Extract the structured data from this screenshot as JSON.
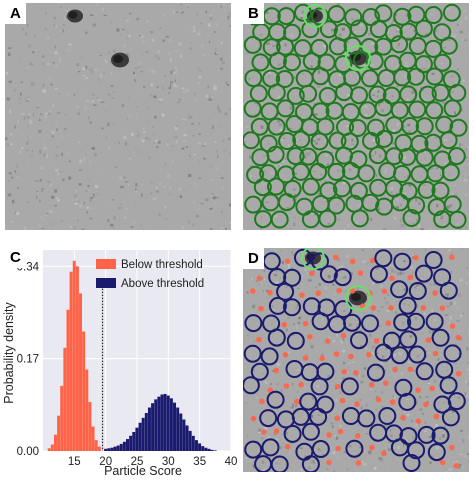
{
  "panels": {
    "A": {
      "label": "A"
    },
    "B": {
      "label": "B"
    },
    "C": {
      "label": "C"
    },
    "D": {
      "label": "D"
    }
  },
  "colors": {
    "micrograph_bg": "#a9a9a9",
    "accepted_pick": "#1f7a1f",
    "reference_pick": "#66e066",
    "below_threshold": "#ff6347",
    "above_threshold": "#1a1a6e",
    "plot_bg": "#e9e9f2"
  },
  "chart_data": {
    "type": "bar",
    "title": "",
    "xlabel": "Particle Score",
    "ylabel": "Probability density",
    "xlim": [
      10,
      40
    ],
    "ylim": [
      0,
      0.37
    ],
    "xticks": [
      15,
      20,
      25,
      30,
      35,
      40
    ],
    "yticks": [
      0.0,
      0.17,
      0.34
    ],
    "ytick_labels": [
      "0.00",
      "0.17",
      "0.34"
    ],
    "threshold": 19.5,
    "grid": true,
    "legend_position": "top-right",
    "bin_width": 0.5,
    "series": [
      {
        "name": "Below threshold",
        "color": "#ff6347",
        "x": [
          11.0,
          11.5,
          12.0,
          12.5,
          13.0,
          13.5,
          14.0,
          14.5,
          15.0,
          15.5,
          16.0,
          16.5,
          17.0,
          17.5,
          18.0,
          18.5,
          19.0
        ],
        "values": [
          0.005,
          0.012,
          0.03,
          0.065,
          0.12,
          0.19,
          0.26,
          0.33,
          0.35,
          0.34,
          0.29,
          0.22,
          0.15,
          0.09,
          0.045,
          0.02,
          0.008
        ]
      },
      {
        "name": "Above threshold",
        "color": "#1a1a6e",
        "x": [
          20.0,
          20.5,
          21.0,
          21.5,
          22.0,
          22.5,
          23.0,
          23.5,
          24.0,
          24.5,
          25.0,
          25.5,
          26.0,
          26.5,
          27.0,
          27.5,
          28.0,
          28.5,
          29.0,
          29.5,
          30.0,
          30.5,
          31.0,
          31.5,
          32.0,
          32.5,
          33.0,
          33.5,
          34.0,
          34.5,
          35.0,
          35.5,
          36.0,
          36.5,
          37.0,
          37.5
        ],
        "values": [
          0.004,
          0.005,
          0.006,
          0.008,
          0.01,
          0.013,
          0.017,
          0.022,
          0.028,
          0.035,
          0.043,
          0.052,
          0.061,
          0.07,
          0.08,
          0.088,
          0.095,
          0.1,
          0.104,
          0.105,
          0.102,
          0.097,
          0.089,
          0.08,
          0.069,
          0.058,
          0.047,
          0.037,
          0.028,
          0.02,
          0.014,
          0.009,
          0.006,
          0.004,
          0.002,
          0.001
        ]
      }
    ]
  }
}
